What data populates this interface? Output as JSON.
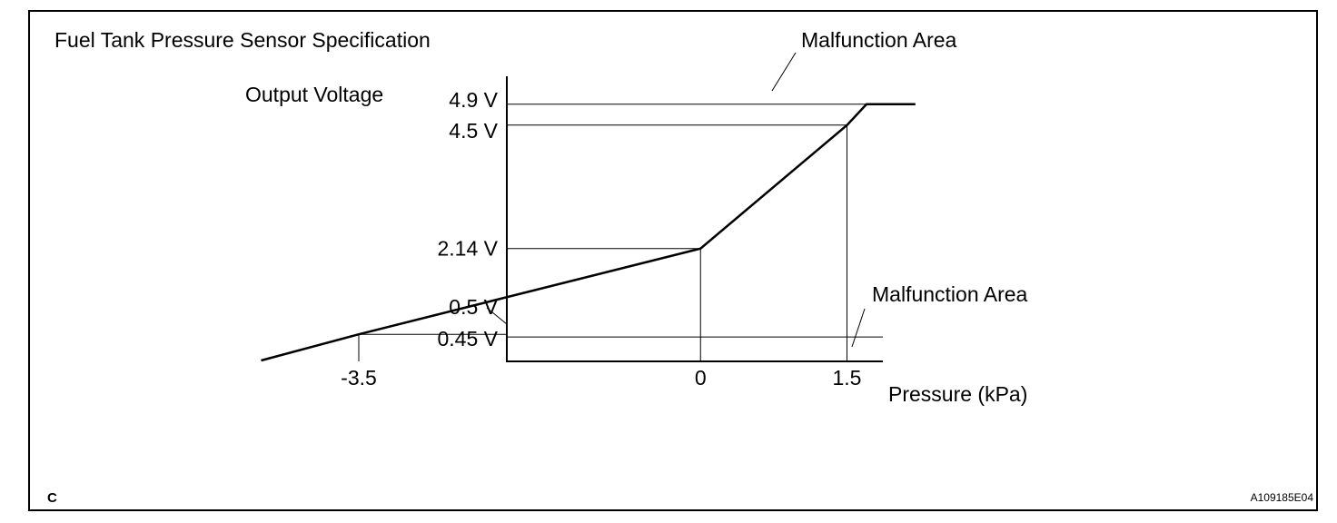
{
  "chart_data": {
    "type": "line",
    "title": "Fuel Tank Pressure Sensor Specification",
    "ylabel": "Output Voltage",
    "xlabel": "Pressure (kPa)",
    "x_ticks": [
      {
        "value": -3.5,
        "label": "-3.5"
      },
      {
        "value": 0,
        "label": "0"
      },
      {
        "value": 1.5,
        "label": "1.5"
      }
    ],
    "y_ticks": [
      {
        "value": 4.9,
        "label": "4.9 V"
      },
      {
        "value": 4.5,
        "label": "4.5 V"
      },
      {
        "value": 2.14,
        "label": "2.14 V"
      },
      {
        "value": 0.5,
        "label": "0.5 V"
      },
      {
        "value": 0.45,
        "label": "0.45 V"
      }
    ],
    "series": [
      {
        "points": [
          {
            "x": -4.5,
            "y": 0.0
          },
          {
            "x": -3.5,
            "y": 0.5
          },
          {
            "x": 0,
            "y": 2.14
          },
          {
            "x": 1.5,
            "y": 4.5
          },
          {
            "x": 1.7,
            "y": 4.9
          },
          {
            "x": 2.2,
            "y": 4.9
          }
        ]
      }
    ],
    "annotations": {
      "upper_malfunction": "Malfunction Area",
      "lower_malfunction": "Malfunction Area"
    }
  },
  "figure": {
    "corner_label": "C",
    "figure_code": "A109185E04"
  }
}
